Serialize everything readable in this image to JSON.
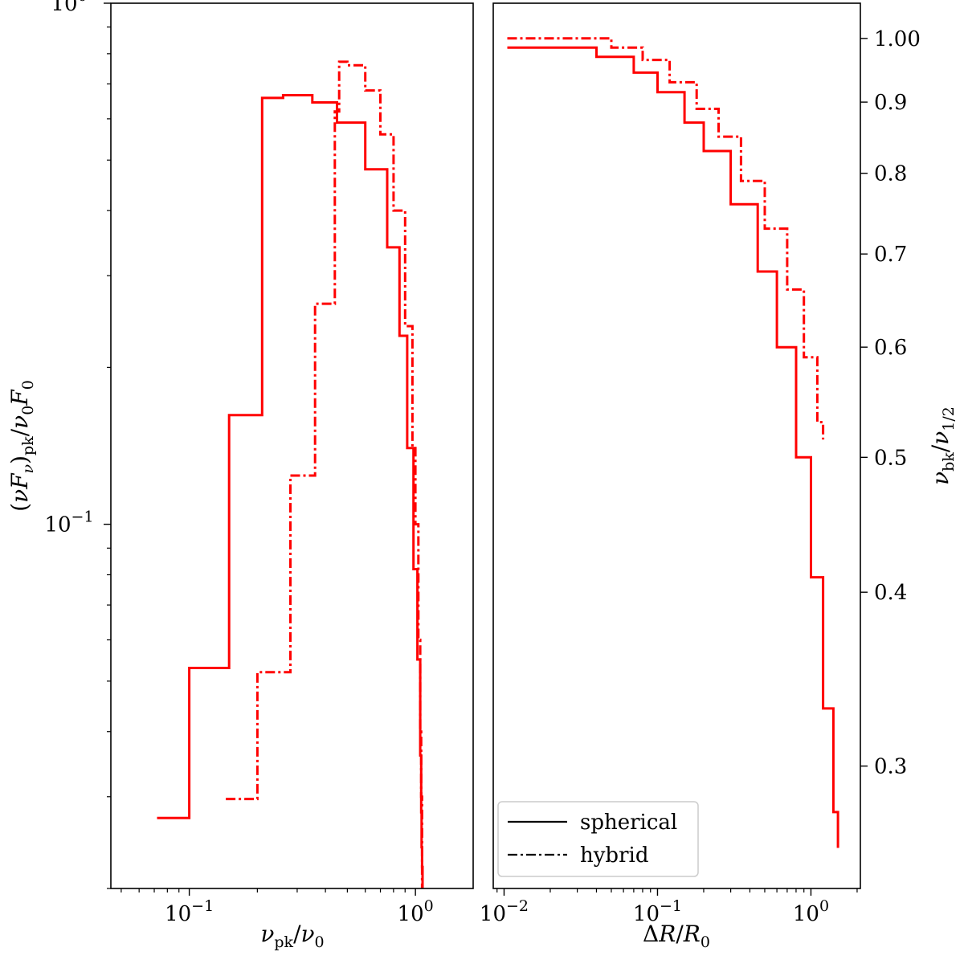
{
  "chart_data": [
    {
      "type": "line",
      "panel": "left",
      "xlabel": "ν_pk/ν_0",
      "ylabel": "(νF_ν)_pk/ν_0F_0",
      "xscale": "log",
      "yscale": "log",
      "xlim": [
        0.045,
        1.8
      ],
      "ylim": [
        0.02,
        1.0
      ],
      "x_ticks": [
        {
          "value": 0.1,
          "base": "10",
          "exp": "−1"
        },
        {
          "value": 1.0,
          "base": "10",
          "exp": "0"
        }
      ],
      "y_ticks": [
        {
          "value": 0.1,
          "base": "10",
          "exp": "−1"
        },
        {
          "value": 1.0,
          "base": "10",
          "exp": "0"
        }
      ],
      "series": [
        {
          "name": "spherical",
          "linestyle": "solid",
          "color": "#ff0000",
          "x": [
            0.072,
            0.1,
            0.15,
            0.21,
            0.26,
            0.35,
            0.45,
            0.6,
            0.75,
            0.85,
            0.92,
            0.98,
            1.02,
            1.05,
            1.06,
            1.065,
            1.07,
            1.075
          ],
          "y": [
            0.0273,
            0.053,
            0.162,
            0.658,
            0.666,
            0.645,
            0.59,
            0.48,
            0.34,
            0.23,
            0.14,
            0.082,
            0.055,
            0.036,
            0.028,
            0.024,
            0.022,
            0.02
          ]
        },
        {
          "name": "hybrid",
          "linestyle": "dashdot",
          "color": "#ff0000",
          "x": [
            0.145,
            0.2,
            0.28,
            0.36,
            0.44,
            0.46,
            0.5,
            0.6,
            0.7,
            0.8,
            0.9,
            0.97,
            1.0,
            1.03,
            1.05,
            1.06,
            1.07
          ],
          "y": [
            0.0297,
            0.052,
            0.124,
            0.265,
            0.62,
            0.772,
            0.76,
            0.68,
            0.56,
            0.4,
            0.24,
            0.14,
            0.1,
            0.06,
            0.04,
            0.03,
            0.02
          ]
        }
      ]
    },
    {
      "type": "line",
      "panel": "right",
      "xlabel": "ΔR/R_0",
      "ylabel": "ν_bk/ν_1/2",
      "xscale": "log",
      "yscale": "log",
      "xlim": [
        0.0085,
        2.1
      ],
      "ylim": [
        0.245,
        1.06
      ],
      "x_ticks": [
        {
          "value": 0.01,
          "base": "10",
          "exp": "−2"
        },
        {
          "value": 0.1,
          "base": "10",
          "exp": "−1"
        },
        {
          "value": 1.0,
          "base": "10",
          "exp": "0"
        }
      ],
      "y_ticks": [
        {
          "value": 0.3,
          "label": "0.3"
        },
        {
          "value": 0.4,
          "label": "0.4"
        },
        {
          "value": 0.5,
          "label": "0.5"
        },
        {
          "value": 0.6,
          "label": "0.6"
        },
        {
          "value": 0.7,
          "label": "0.7"
        },
        {
          "value": 0.8,
          "label": "0.8"
        },
        {
          "value": 0.9,
          "label": "0.9"
        },
        {
          "value": 1.0,
          "label": "1.00"
        }
      ],
      "legend": {
        "location": "lower-left",
        "entries": [
          {
            "label": "spherical",
            "linestyle": "solid"
          },
          {
            "label": "hybrid",
            "linestyle": "dashdot"
          }
        ]
      },
      "series": [
        {
          "name": "spherical",
          "linestyle": "solid",
          "color": "#ff0000",
          "x": [
            0.0105,
            0.012,
            0.02,
            0.04,
            0.07,
            0.1,
            0.15,
            0.2,
            0.3,
            0.45,
            0.6,
            0.8,
            1.0,
            1.2,
            1.4,
            1.5
          ],
          "y": [
            0.985,
            0.985,
            0.985,
            0.97,
            0.945,
            0.915,
            0.87,
            0.83,
            0.76,
            0.68,
            0.6,
            0.5,
            0.41,
            0.33,
            0.278,
            0.262
          ]
        },
        {
          "name": "hybrid",
          "linestyle": "dashdot",
          "color": "#ff0000",
          "x": [
            0.0105,
            0.015,
            0.03,
            0.05,
            0.08,
            0.12,
            0.18,
            0.25,
            0.35,
            0.5,
            0.7,
            0.9,
            1.1,
            1.2
          ],
          "y": [
            1.0,
            1.0,
            1.0,
            0.985,
            0.965,
            0.93,
            0.89,
            0.85,
            0.79,
            0.73,
            0.66,
            0.59,
            0.53,
            0.515
          ]
        }
      ]
    }
  ]
}
